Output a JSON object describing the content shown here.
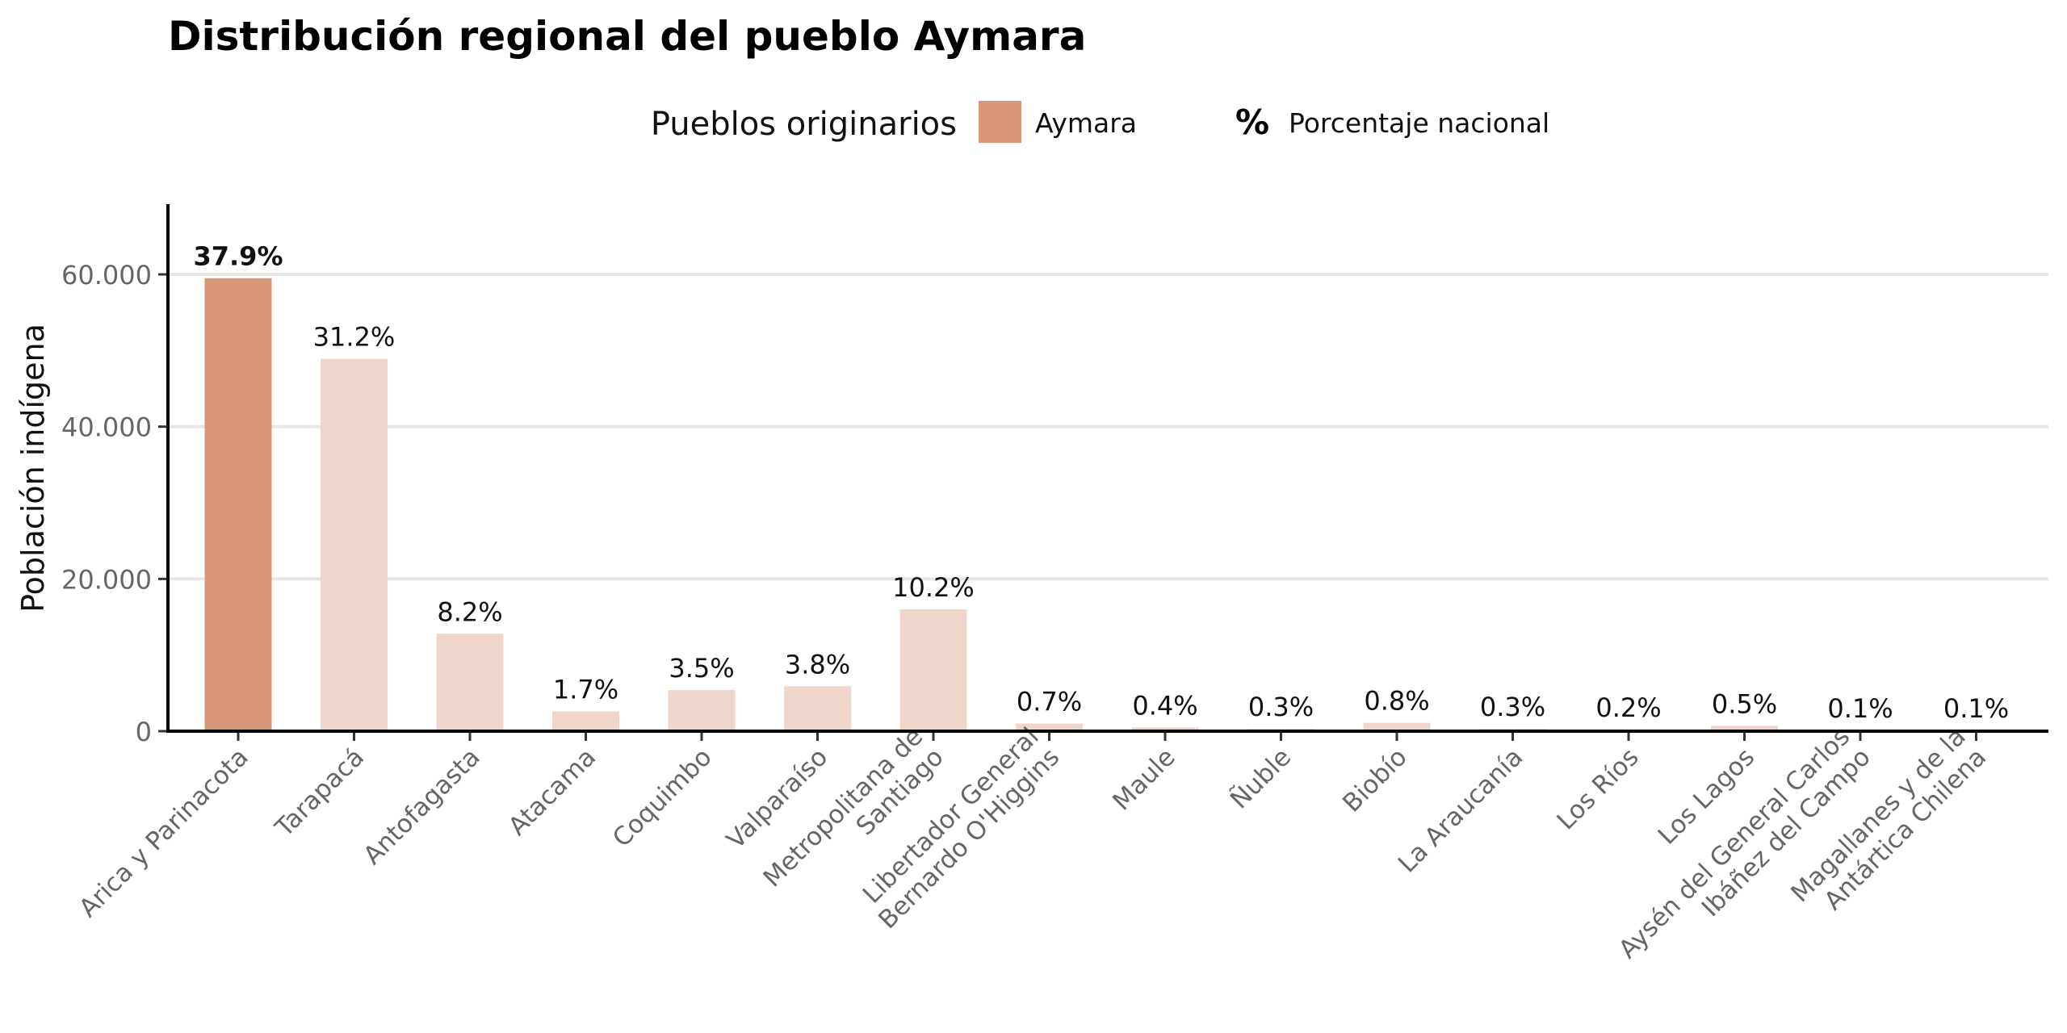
{
  "chart_data": {
    "type": "bar",
    "title": "Distribución regional del pueblo Aymara",
    "ylabel": "Población indígena",
    "xlabel": "",
    "ylim": [
      0,
      68000
    ],
    "yticks": [
      0,
      20000,
      40000,
      60000
    ],
    "ytick_labels": [
      "0",
      "20.000",
      "40.000",
      "60.000"
    ],
    "grid": true,
    "legend": {
      "position": "top",
      "title": "Pueblos originarios",
      "items": [
        {
          "label": "Aymara",
          "kind": "swatch",
          "color": "#d9977a"
        },
        {
          "label": "Porcentaje nacional",
          "kind": "symbol",
          "symbol": "%"
        }
      ]
    },
    "colors": {
      "highlight": "#d9977a",
      "normal": "#f0d5cb"
    },
    "categories": [
      "Arica y Parinacota",
      "Tarapacá",
      "Antofagasta",
      "Atacama",
      "Coquimbo",
      "Valparaíso",
      "Metropolitana de\nSantiago",
      "Libertador General\nBernardo O'Higgins",
      "Maule",
      "Ñuble",
      "Biobío",
      "La Araucanía",
      "Los Ríos",
      "Los Lagos",
      "Aysén del General Carlos\nIbáñez del Campo",
      "Magallanes y de la\nAntártica Chilena"
    ],
    "values": [
      59500,
      48900,
      12800,
      2600,
      5400,
      5900,
      16000,
      1000,
      500,
      300,
      1100,
      300,
      200,
      700,
      100,
      100
    ],
    "labels": [
      "37.9%",
      "31.2%",
      "8.2%",
      "1.7%",
      "3.5%",
      "3.8%",
      "10.2%",
      "0.7%",
      "0.4%",
      "0.3%",
      "0.8%",
      "0.3%",
      "0.2%",
      "0.5%",
      "0.1%",
      "0.1%"
    ],
    "highlight_index": 0
  }
}
